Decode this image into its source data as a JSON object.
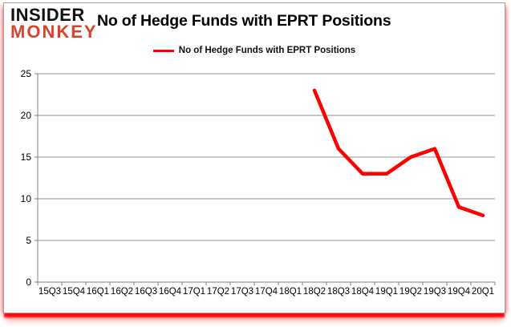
{
  "logo": {
    "line1": "INSIDER",
    "line2": "MONKEY"
  },
  "header": {
    "title": "No of Hedge Funds with EPRT Positions"
  },
  "legend": {
    "label": "No of Hedge Funds with EPRT Positions",
    "swatch_color": "#ff0000"
  },
  "colors": {
    "line": "#ff0000",
    "grid": "#909090",
    "axis": "#808080",
    "logo_black": "#111111",
    "logo_red": "#d9432e",
    "frame_red": "#ff0000"
  },
  "chart_data": {
    "type": "line",
    "title": "No of Hedge Funds with EPRT Positions",
    "categories": [
      "15Q3",
      "15Q4",
      "16Q1",
      "16Q2",
      "16Q3",
      "16Q4",
      "17Q1",
      "17Q2",
      "17Q3",
      "17Q4",
      "18Q1",
      "18Q2",
      "18Q3",
      "18Q4",
      "19Q1",
      "19Q2",
      "19Q3",
      "19Q4",
      "20Q1"
    ],
    "series": [
      {
        "name": "No of Hedge Funds with EPRT Positions",
        "color": "#ff0000",
        "values": [
          null,
          null,
          null,
          null,
          null,
          null,
          null,
          null,
          null,
          null,
          null,
          23,
          16,
          13,
          13,
          15,
          16,
          9,
          8
        ]
      }
    ],
    "ylim": [
      0,
      25
    ],
    "yticks": [
      0,
      5,
      10,
      15,
      20,
      25
    ],
    "grid": "horizontal",
    "legend_position": "top"
  }
}
